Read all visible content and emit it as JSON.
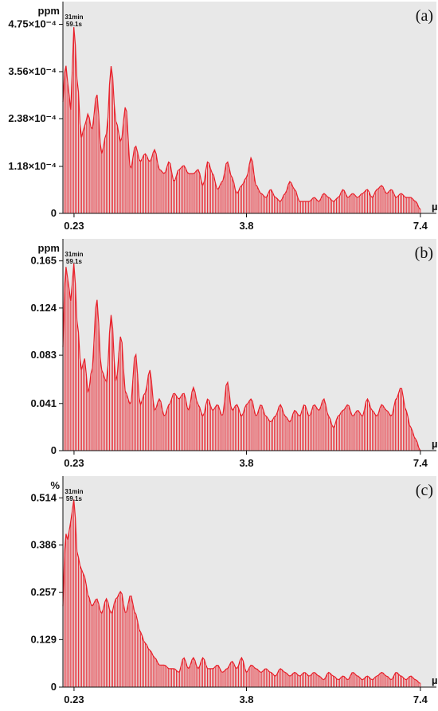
{
  "colors": {
    "bars": "#e8202a",
    "background": "#e8e8e8",
    "axis": "#111111"
  },
  "chart_data": [
    {
      "type": "bar",
      "panel_label": "(a)",
      "y_unit": "ppm",
      "x_unit": "µHz",
      "annotation": [
        "31min",
        "59.1s"
      ],
      "x_ticks": [
        0.23,
        3.8,
        7.4
      ],
      "x_tick_labels": [
        "0.23",
        "3.8",
        "7.4"
      ],
      "y_ticks": [
        0,
        0.000118,
        0.000238,
        0.000356,
        0.000475
      ],
      "y_tick_labels": [
        "0",
        "1.18×10⁻⁴",
        "2.38×10⁻⁴",
        "3.56×10⁻⁴",
        "4.75×10⁻⁴"
      ],
      "xlim": [
        0.0,
        7.6
      ],
      "ylim": [
        0,
        0.00052
      ],
      "x": [
        0.0,
        0.05,
        0.1,
        0.16,
        0.23,
        0.3,
        0.38,
        0.45,
        0.52,
        0.6,
        0.7,
        0.8,
        0.9,
        1.0,
        1.1,
        1.2,
        1.3,
        1.4,
        1.5,
        1.6,
        1.7,
        1.8,
        1.9,
        2.0,
        2.1,
        2.2,
        2.3,
        2.4,
        2.5,
        2.6,
        2.7,
        2.8,
        2.9,
        3.0,
        3.1,
        3.2,
        3.3,
        3.4,
        3.5,
        3.6,
        3.7,
        3.8,
        3.9,
        4.0,
        4.1,
        4.2,
        4.3,
        4.4,
        4.5,
        4.6,
        4.7,
        4.8,
        4.9,
        5.0,
        5.1,
        5.2,
        5.3,
        5.4,
        5.5,
        5.6,
        5.7,
        5.8,
        5.9,
        6.0,
        6.1,
        6.2,
        6.3,
        6.4,
        6.5,
        6.6,
        6.7,
        6.8,
        6.9,
        7.0,
        7.1,
        7.2,
        7.3,
        7.4
      ],
      "values": [
        0.00028,
        0.00038,
        0.00033,
        0.00026,
        0.00047,
        0.00033,
        0.00019,
        0.00022,
        0.00025,
        0.00021,
        0.0003,
        0.00015,
        0.0002,
        0.00037,
        0.00023,
        0.00018,
        0.00027,
        0.00011,
        0.00017,
        0.00013,
        0.00015,
        0.00013,
        0.00016,
        0.00011,
        0.0001,
        0.00013,
        8e-05,
        0.00011,
        0.00012,
        0.0001,
        0.0001,
        0.00011,
        7e-05,
        0.00013,
        0.0001,
        6e-05,
        8e-05,
        0.00013,
        9e-05,
        5e-05,
        7e-05,
        9e-05,
        0.00014,
        7e-05,
        5e-05,
        4e-05,
        6e-05,
        4e-05,
        3e-05,
        5e-05,
        8e-05,
        6e-05,
        3e-05,
        3e-05,
        3e-05,
        4e-05,
        3e-05,
        5e-05,
        4e-05,
        3e-05,
        4e-05,
        6e-05,
        4e-05,
        5e-05,
        4e-05,
        5e-05,
        6e-05,
        4e-05,
        6e-05,
        7e-05,
        5e-05,
        6e-05,
        4e-05,
        5e-05,
        4e-05,
        4e-05,
        3e-05,
        1e-05
      ]
    },
    {
      "type": "bar",
      "panel_label": "(b)",
      "y_unit": "ppm",
      "x_unit": "µHz",
      "annotation": [
        "31min",
        "59.1s"
      ],
      "x_ticks": [
        0.23,
        3.8,
        7.4
      ],
      "x_tick_labels": [
        "0.23",
        "3.8",
        "7.4"
      ],
      "y_ticks": [
        0,
        0.041,
        0.083,
        0.124,
        0.165
      ],
      "y_tick_labels": [
        "0",
        "0.041",
        "0.083",
        "0.124",
        "0.165"
      ],
      "xlim": [
        0.0,
        7.6
      ],
      "ylim": [
        0,
        0.18
      ],
      "x": [
        0.0,
        0.05,
        0.1,
        0.16,
        0.23,
        0.3,
        0.38,
        0.45,
        0.52,
        0.6,
        0.7,
        0.8,
        0.9,
        1.0,
        1.1,
        1.2,
        1.3,
        1.4,
        1.5,
        1.6,
        1.7,
        1.8,
        1.9,
        2.0,
        2.1,
        2.2,
        2.3,
        2.4,
        2.5,
        2.6,
        2.7,
        2.8,
        2.9,
        3.0,
        3.1,
        3.2,
        3.3,
        3.4,
        3.5,
        3.6,
        3.7,
        3.8,
        3.9,
        4.0,
        4.1,
        4.2,
        4.3,
        4.4,
        4.5,
        4.6,
        4.7,
        4.8,
        4.9,
        5.0,
        5.1,
        5.2,
        5.3,
        5.4,
        5.5,
        5.6,
        5.7,
        5.8,
        5.9,
        6.0,
        6.1,
        6.2,
        6.3,
        6.4,
        6.5,
        6.6,
        6.7,
        6.8,
        6.9,
        7.0,
        7.1,
        7.2,
        7.3,
        7.4
      ],
      "values": [
        0.09,
        0.162,
        0.15,
        0.13,
        0.163,
        0.11,
        0.07,
        0.08,
        0.05,
        0.07,
        0.132,
        0.07,
        0.06,
        0.118,
        0.06,
        0.1,
        0.05,
        0.04,
        0.085,
        0.04,
        0.05,
        0.07,
        0.035,
        0.045,
        0.03,
        0.04,
        0.05,
        0.045,
        0.05,
        0.035,
        0.055,
        0.04,
        0.03,
        0.045,
        0.035,
        0.04,
        0.03,
        0.06,
        0.035,
        0.04,
        0.03,
        0.04,
        0.045,
        0.03,
        0.04,
        0.03,
        0.025,
        0.03,
        0.04,
        0.03,
        0.025,
        0.035,
        0.03,
        0.04,
        0.03,
        0.04,
        0.035,
        0.045,
        0.03,
        0.02,
        0.03,
        0.035,
        0.04,
        0.03,
        0.035,
        0.03,
        0.045,
        0.035,
        0.03,
        0.04,
        0.035,
        0.03,
        0.045,
        0.055,
        0.035,
        0.02,
        0.01,
        0.0
      ]
    },
    {
      "type": "bar",
      "panel_label": "(c)",
      "y_unit": "%",
      "x_unit": "µHz",
      "annotation": [
        "31min",
        "59.1s"
      ],
      "x_ticks": [
        0.23,
        3.8,
        7.4
      ],
      "x_tick_labels": [
        "0.23",
        "3.8",
        "7.4"
      ],
      "y_ticks": [
        0,
        0.129,
        0.257,
        0.386,
        0.514
      ],
      "y_tick_labels": [
        "0",
        "0.129",
        "0.257",
        "0.386",
        "0.514"
      ],
      "xlim": [
        0.0,
        7.6
      ],
      "ylim": [
        0,
        0.56
      ],
      "x": [
        0.0,
        0.05,
        0.1,
        0.16,
        0.23,
        0.3,
        0.38,
        0.45,
        0.52,
        0.6,
        0.7,
        0.8,
        0.9,
        1.0,
        1.1,
        1.2,
        1.3,
        1.4,
        1.5,
        1.6,
        1.7,
        1.8,
        1.9,
        2.0,
        2.1,
        2.2,
        2.3,
        2.4,
        2.5,
        2.6,
        2.7,
        2.8,
        2.9,
        3.0,
        3.1,
        3.2,
        3.3,
        3.4,
        3.5,
        3.6,
        3.7,
        3.8,
        3.9,
        4.0,
        4.1,
        4.2,
        4.3,
        4.4,
        4.5,
        4.6,
        4.7,
        4.8,
        4.9,
        5.0,
        5.1,
        5.2,
        5.3,
        5.4,
        5.5,
        5.6,
        5.7,
        5.8,
        5.9,
        6.0,
        6.1,
        6.2,
        6.3,
        6.4,
        6.5,
        6.6,
        6.7,
        6.8,
        6.9,
        7.0,
        7.1,
        7.2,
        7.3,
        7.4
      ],
      "values": [
        0.22,
        0.42,
        0.4,
        0.45,
        0.51,
        0.36,
        0.32,
        0.3,
        0.25,
        0.22,
        0.24,
        0.2,
        0.24,
        0.2,
        0.24,
        0.26,
        0.2,
        0.25,
        0.2,
        0.15,
        0.12,
        0.1,
        0.08,
        0.06,
        0.06,
        0.05,
        0.05,
        0.04,
        0.08,
        0.05,
        0.08,
        0.05,
        0.08,
        0.05,
        0.05,
        0.06,
        0.04,
        0.05,
        0.07,
        0.05,
        0.08,
        0.04,
        0.06,
        0.05,
        0.04,
        0.05,
        0.04,
        0.03,
        0.05,
        0.04,
        0.03,
        0.04,
        0.03,
        0.04,
        0.03,
        0.04,
        0.03,
        0.02,
        0.04,
        0.03,
        0.02,
        0.03,
        0.02,
        0.04,
        0.03,
        0.02,
        0.03,
        0.02,
        0.03,
        0.04,
        0.03,
        0.02,
        0.04,
        0.03,
        0.02,
        0.03,
        0.02,
        0.01
      ]
    }
  ]
}
